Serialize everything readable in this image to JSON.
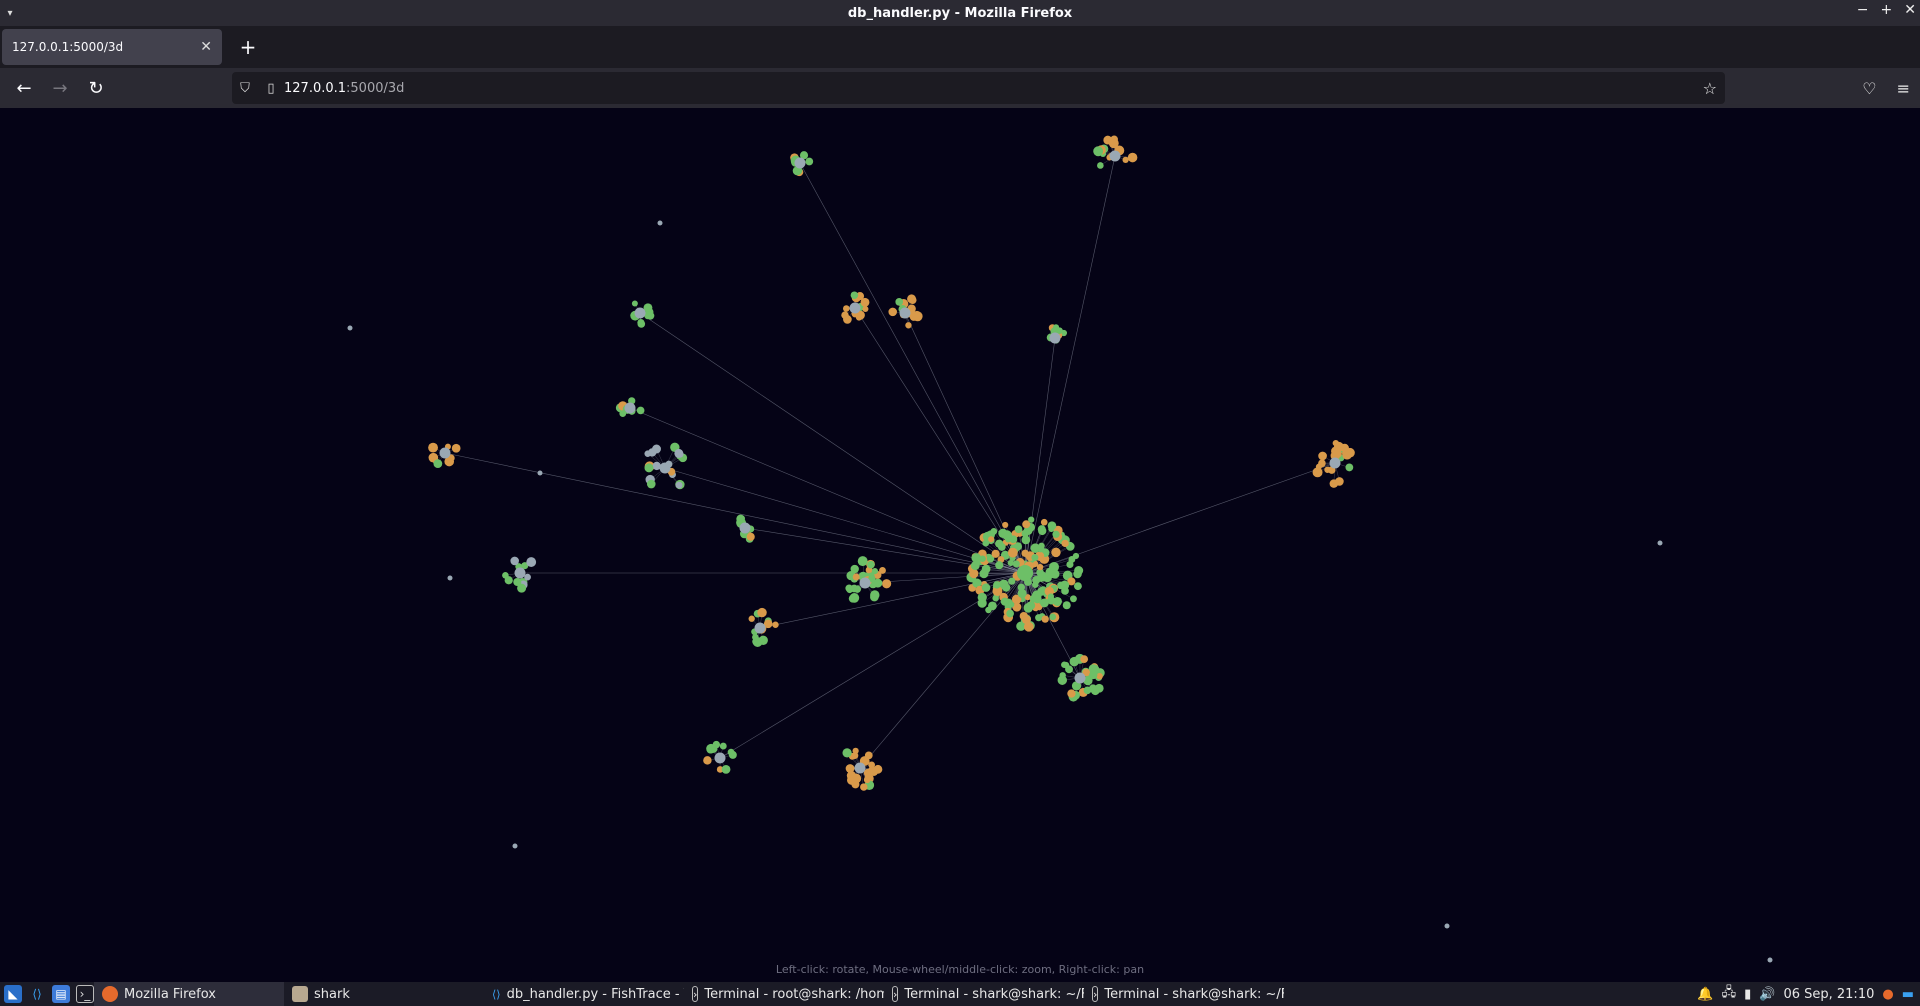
{
  "window": {
    "title": "db_handler.py - Mozilla Firefox"
  },
  "tabs": [
    {
      "label": "127.0.0.1:5000/3d"
    }
  ],
  "url": {
    "host": "127.0.0.1",
    "path": ":5000/3d"
  },
  "hint": "Left-click: rotate, Mouse-wheel/middle-click: zoom, Right-click: pan",
  "taskbar": {
    "tasks": [
      {
        "label": "Mozilla Firefox",
        "icon": "firefox-icon"
      },
      {
        "label": "shark",
        "icon": "folder-icon"
      },
      {
        "label": "db_handler.py - FishTrace - Vi...",
        "icon": "vscode-icon"
      },
      {
        "label": "Terminal - root@shark: /hom...",
        "icon": "terminal-icon"
      },
      {
        "label": "Terminal - shark@shark: ~/Fi...",
        "icon": "terminal-icon"
      },
      {
        "label": "Terminal - shark@shark: ~/Fi...",
        "icon": "terminal-icon"
      }
    ],
    "clock": "06 Sep, 21:10"
  },
  "colors": {
    "green": "#6dbf67",
    "orange": "#d99a4a",
    "gray": "#9aa8b4",
    "background": "#050316"
  }
}
